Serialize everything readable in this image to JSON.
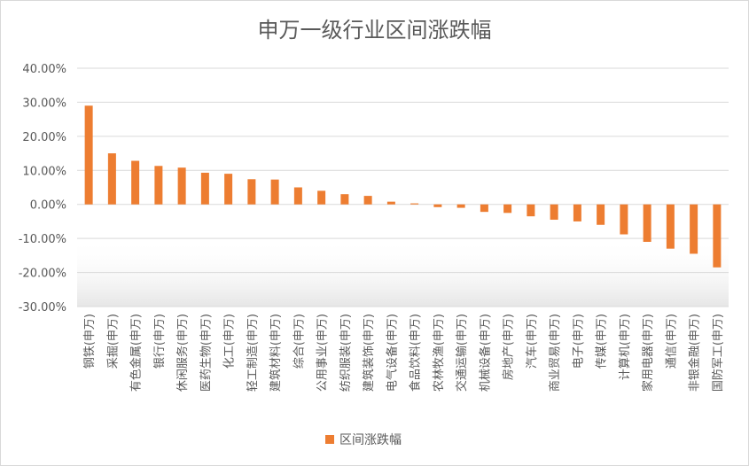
{
  "chart_data": {
    "type": "bar",
    "title": "申万一级行业区间涨跌幅",
    "xlabel": "",
    "ylabel": "",
    "ylim": [
      -30,
      40
    ],
    "yticks": [
      "40.00%",
      "30.00%",
      "20.00%",
      "10.00%",
      "0.00%",
      "-10.00%",
      "-20.00%",
      "-30.00%"
    ],
    "ytick_values": [
      40,
      30,
      20,
      10,
      0,
      -10,
      -20,
      -30
    ],
    "grid": true,
    "legend_position": "bottom",
    "categories": [
      "钢铁(申万)",
      "采掘(申万)",
      "有色金属(申万)",
      "银行(申万)",
      "休闲服务(申万)",
      "医药生物(申万)",
      "化工(申万)",
      "轻工制造(申万)",
      "建筑材料(申万)",
      "综合(申万)",
      "公用事业(申万)",
      "纺织服装(申万)",
      "建筑装饰(申万)",
      "电气设备(申万)",
      "食品饮料(申万)",
      "农林牧渔(申万)",
      "交通运输(申万)",
      "机械设备(申万)",
      "房地产(申万)",
      "汽车(申万)",
      "商业贸易(申万)",
      "电子(申万)",
      "传媒(申万)",
      "计算机(申万)",
      "家用电器(申万)",
      "通信(申万)",
      "非银金融(申万)",
      "国防军工(申万)"
    ],
    "series": [
      {
        "name": "区间涨跌幅",
        "color": "#ed7d31",
        "values": [
          29.0,
          15.0,
          12.8,
          11.3,
          10.8,
          9.3,
          9.0,
          7.4,
          7.3,
          5.0,
          4.0,
          3.0,
          2.5,
          0.8,
          0.3,
          -0.8,
          -1.0,
          -2.2,
          -2.5,
          -3.5,
          -4.5,
          -5.0,
          -6.0,
          -8.8,
          -11.0,
          -13.0,
          -14.5,
          -18.5
        ]
      }
    ]
  }
}
